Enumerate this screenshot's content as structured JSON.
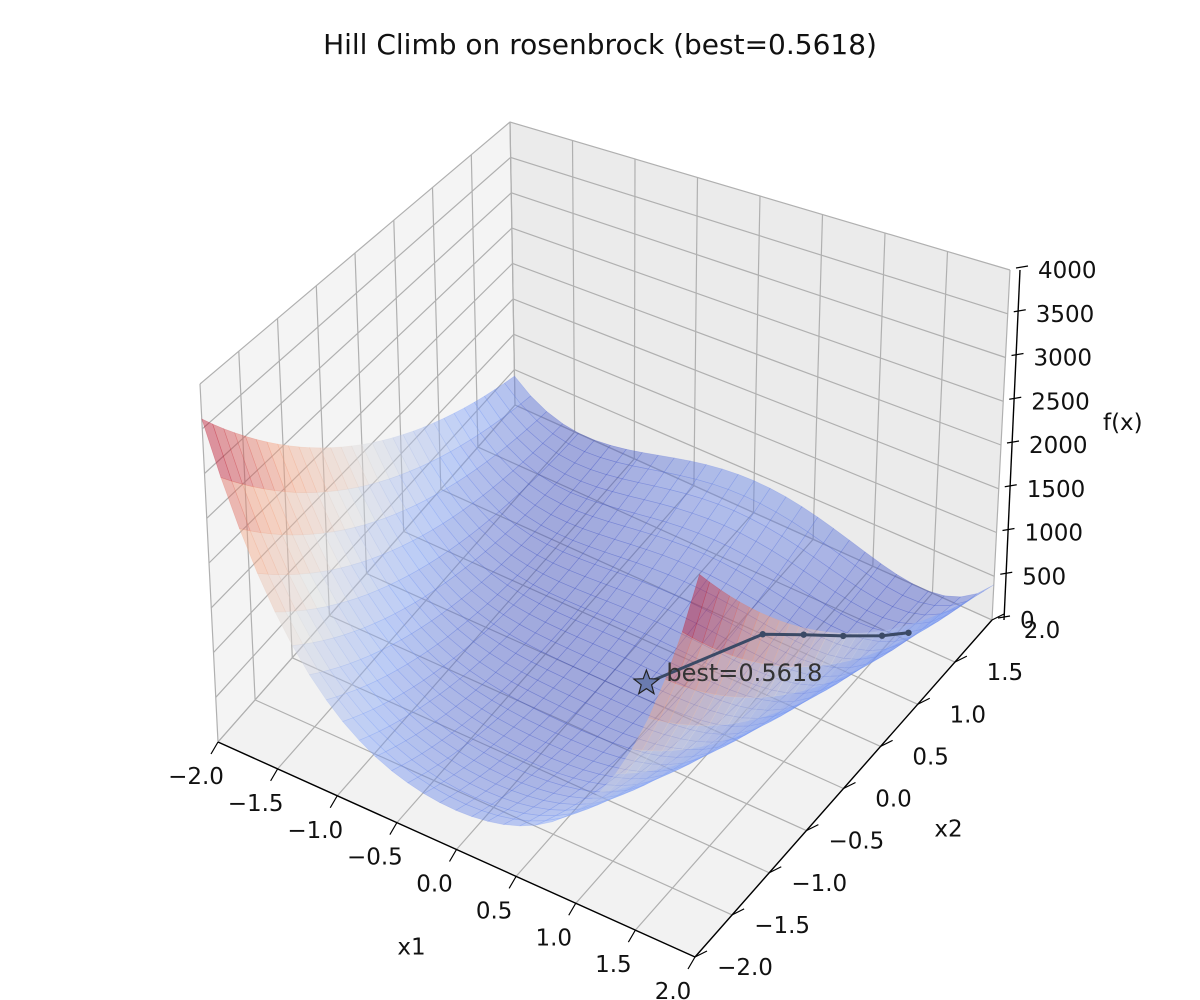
{
  "chart_data": {
    "type": "surface3d",
    "title": "Hill Climb on rosenbrock (best=0.5618)",
    "function": "rosenbrock",
    "xlabel": "x1",
    "ylabel": "x2",
    "zlabel": "f(x)",
    "xlim": [
      -2.0,
      2.0
    ],
    "ylim": [
      -2.0,
      2.0
    ],
    "zlim": [
      0,
      4000
    ],
    "x_ticks": [
      "−2.0",
      "−1.5",
      "−1.0",
      "−0.5",
      "0.0",
      "0.5",
      "1.0",
      "1.5",
      "2.0"
    ],
    "y_ticks": [
      "−2.0",
      "−1.5",
      "−1.0",
      "−0.5",
      "0.0",
      "0.5",
      "1.0",
      "1.5",
      "2.0"
    ],
    "z_ticks": [
      "0",
      "500",
      "1000",
      "1500",
      "2000",
      "2500",
      "3000",
      "3500",
      "4000"
    ],
    "colormap": "coolwarm",
    "grid": true,
    "path": {
      "color": "#3b4a66",
      "points": [
        {
          "x1": 1.62,
          "x2": 1.48,
          "f": 120
        },
        {
          "x1": 1.45,
          "x2": 1.4,
          "f": 60
        },
        {
          "x1": 1.2,
          "x2": 1.28,
          "f": 20
        },
        {
          "x1": 0.95,
          "x2": 1.15,
          "f": 6
        },
        {
          "x1": 0.7,
          "x2": 1.0,
          "f": 1.5
        },
        {
          "x1": 0.26,
          "x2": 0.14,
          "f": 0.5618
        }
      ]
    },
    "best": {
      "x1": 0.26,
      "x2": 0.14,
      "value": 0.5618,
      "label": "best=0.5618"
    }
  }
}
